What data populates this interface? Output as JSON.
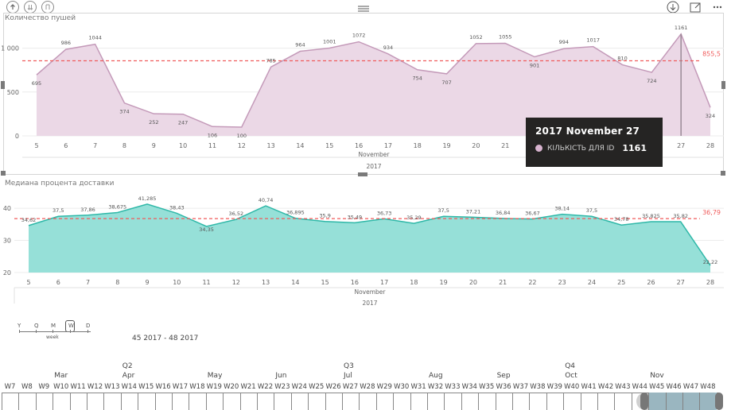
{
  "toolbar": {
    "drill_up_icon": "arrow-up-icon",
    "drill_down_icon": "double-arrow-down-icon",
    "expand_icon": "fork-icon",
    "more_icon": "hamburger-icon",
    "focus_icon": "focus-mode-icon",
    "drill_mode_icon": "arrow-down-circle-icon"
  },
  "chart1_title": "Количество пушей",
  "chart2_title": "Медиана процента доставки",
  "tooltip": {
    "title": "2017 November 27",
    "label": "КІЛЬКІСТЬ ДЛЯ ID",
    "value": "1161",
    "dot_color": "#d7b3cf"
  },
  "colors": {
    "chart1_fill": "#ebd8e6",
    "chart1_line": "#c49ab9",
    "chart2_fill": "#96e0d8",
    "chart2_line": "#2fb8a8",
    "avg_line": "#f05a5a"
  },
  "chart_data": [
    {
      "type": "area",
      "title": "Количество пушей",
      "x": [
        "5",
        "6",
        "7",
        "8",
        "9",
        "10",
        "11",
        "12",
        "13",
        "14",
        "15",
        "16",
        "17",
        "18",
        "19",
        "20",
        "21",
        "22",
        "23",
        "24",
        "25",
        "26",
        "27",
        "28"
      ],
      "values": [
        695,
        986,
        1044,
        374,
        252,
        247,
        106,
        100,
        785,
        964,
        1001,
        1072,
        934,
        754,
        707,
        1052,
        1055,
        901,
        994,
        1017,
        810,
        724,
        1161,
        324
      ],
      "labels": [
        "695",
        "986",
        "1044",
        "374",
        "252",
        "247",
        "106",
        "100",
        "785",
        "964",
        "1001",
        "1072",
        "934",
        "754",
        "707",
        "1052",
        "1055",
        "901",
        "994",
        "1017",
        "810",
        "724",
        "1161",
        "324"
      ],
      "yticks": [
        "0",
        "500",
        "1 000"
      ],
      "ytick_values": [
        0,
        500,
        1000
      ],
      "ylim": [
        0,
        1150
      ],
      "average": 855.5,
      "average_label": "855,5",
      "xlabel": "November",
      "xlabel2": "2017",
      "grid": true
    },
    {
      "type": "area",
      "title": "Медиана процента доставки",
      "x": [
        "5",
        "6",
        "7",
        "8",
        "9",
        "10",
        "11",
        "12",
        "13",
        "14",
        "15",
        "16",
        "17",
        "18",
        "19",
        "20",
        "21",
        "22",
        "23",
        "24",
        "25",
        "26",
        "27",
        "28"
      ],
      "values": [
        34.62,
        37.5,
        37.86,
        38.675,
        41.285,
        38.43,
        34.35,
        36.52,
        40.74,
        36.895,
        35.9,
        35.49,
        36.73,
        35.29,
        37.5,
        37.21,
        36.84,
        36.67,
        38.14,
        37.5,
        34.78,
        35.825,
        35.82,
        22.22
      ],
      "labels": [
        "34,62",
        "37,5",
        "37,86",
        "38,675",
        "41,285",
        "38,43",
        "34,35",
        "36,52",
        "40,74",
        "36,895",
        "35,9",
        "35,49",
        "36,73",
        "35,29",
        "37,5",
        "37,21",
        "36,84",
        "36,67",
        "38,14",
        "37,5",
        "34,78",
        "35,825",
        "35,82",
        "22,22"
      ],
      "yticks": [
        "20",
        "30",
        "40"
      ],
      "ytick_values": [
        20,
        30,
        40
      ],
      "ylim": [
        20,
        42.5
      ],
      "average": 36.79,
      "average_label": "36,79",
      "xlabel": "November",
      "xlabel2": "2017",
      "grid": true
    }
  ],
  "timeline": {
    "granularity": [
      "Y",
      "Q",
      "M",
      "W",
      "D"
    ],
    "granularity_selected": "W",
    "granularity_label": "week",
    "range_label": "45 2017 - 48 2017",
    "quarters": [
      {
        "label": "Q2",
        "week_index": 7
      },
      {
        "label": "Q3",
        "week_index": 20
      },
      {
        "label": "Q4",
        "week_index": 33
      }
    ],
    "months": [
      {
        "label": "Mar",
        "week_index": 3
      },
      {
        "label": "Apr",
        "week_index": 7
      },
      {
        "label": "May",
        "week_index": 12
      },
      {
        "label": "Jun",
        "week_index": 16
      },
      {
        "label": "Jul",
        "week_index": 20
      },
      {
        "label": "Aug",
        "week_index": 25
      },
      {
        "label": "Sep",
        "week_index": 29
      },
      {
        "label": "Oct",
        "week_index": 33
      },
      {
        "label": "Nov",
        "week_index": 38
      }
    ],
    "weeks": [
      "W7",
      "W8",
      "W9",
      "W10",
      "W11",
      "W12",
      "W13",
      "W14",
      "W15",
      "W16",
      "W17",
      "W18",
      "W19",
      "W20",
      "W21",
      "W22",
      "W23",
      "W24",
      "W25",
      "W26",
      "W27",
      "W28",
      "W29",
      "W30",
      "W31",
      "W32",
      "W33",
      "W34",
      "W35",
      "W36",
      "W37",
      "W38",
      "W39",
      "W40",
      "W41",
      "W42",
      "W43",
      "W44",
      "W45",
      "W46",
      "W47",
      "W48"
    ],
    "selected_from": "W45",
    "selected_to": "W48"
  }
}
